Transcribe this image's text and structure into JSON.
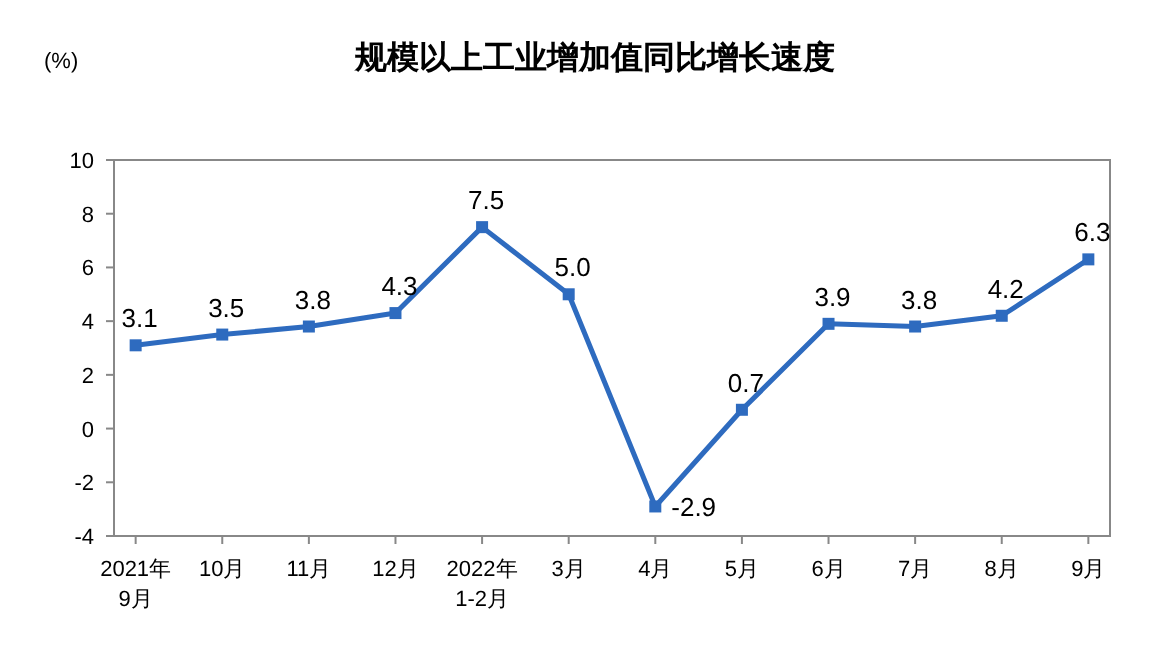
{
  "chart_data": {
    "type": "line",
    "title": "规模以上工业增加值同比增长速度",
    "ylabel": "(%)",
    "categories": [
      "2021年\n9月",
      "10月",
      "11月",
      "12月",
      "2022年\n1-2月",
      "3月",
      "4月",
      "5月",
      "6月",
      "7月",
      "8月",
      "9月"
    ],
    "series": [
      {
        "color": "#2e6bbf",
        "values": [
          3.1,
          3.5,
          3.8,
          4.3,
          7.5,
          5.0,
          -2.9,
          0.7,
          3.9,
          3.8,
          4.2,
          6.3
        ]
      }
    ],
    "value_labels": [
      "3.1",
      "3.5",
      "3.8",
      "4.3",
      "7.5",
      "5.0",
      "-2.9",
      "0.7",
      "3.9",
      "3.8",
      "4.2",
      "6.3"
    ],
    "ylim": [
      -4,
      10
    ],
    "yticks": [
      -4,
      -2,
      0,
      2,
      4,
      6,
      8,
      10
    ],
    "marker": "square",
    "grid": false,
    "line_style": "solid"
  }
}
